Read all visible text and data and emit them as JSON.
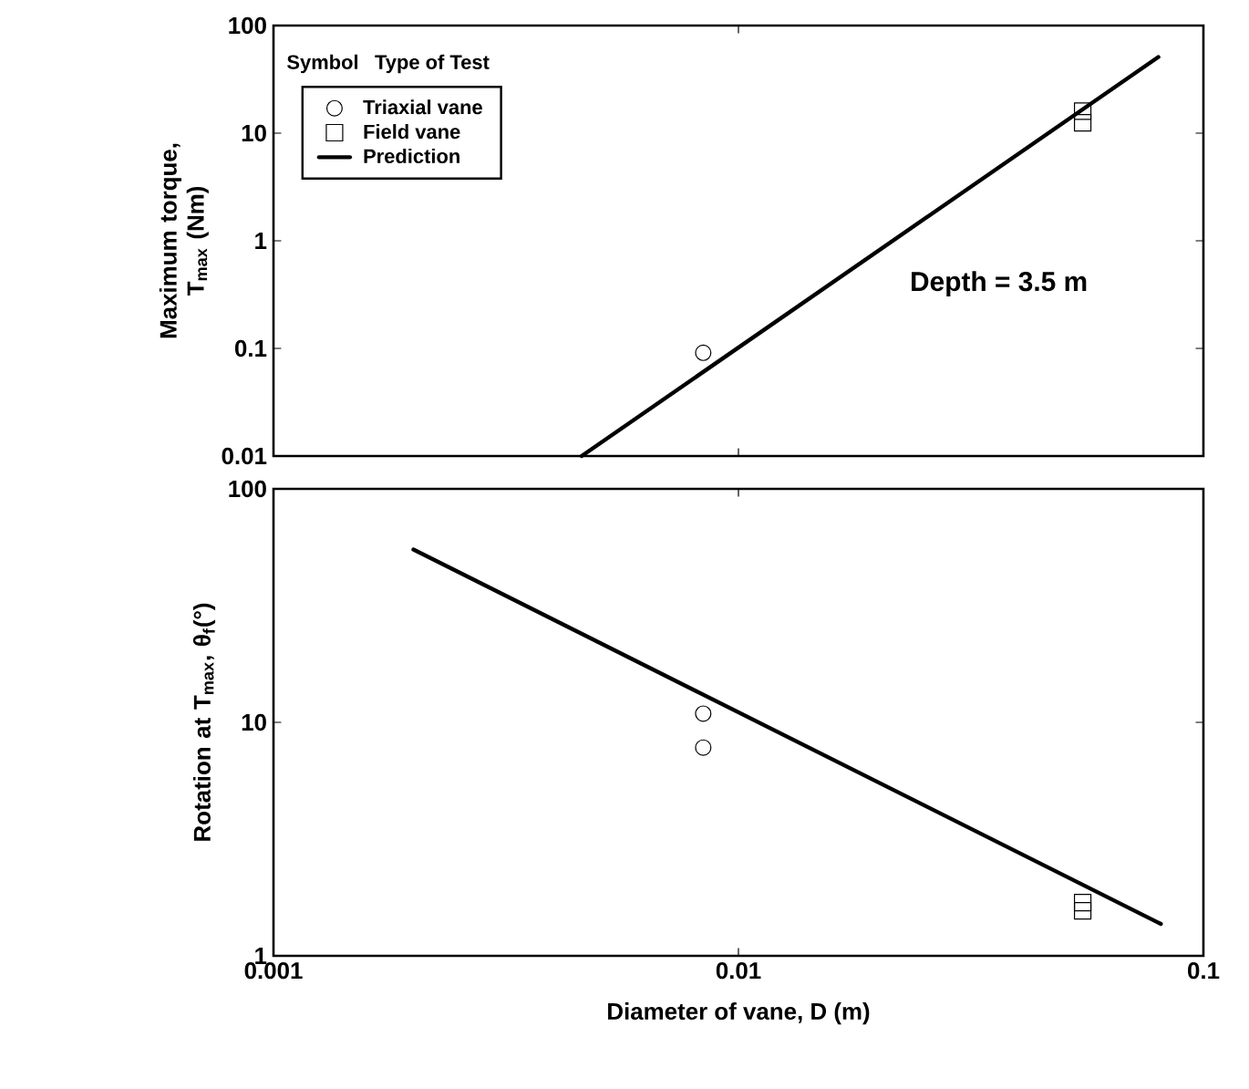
{
  "chart_data": [
    {
      "type": "scatter",
      "ylabel": "Maximum torque, T$_{max}$ (Nm)",
      "log": "xy",
      "xlim": [
        0.001,
        0.1
      ],
      "xticks": [
        0.001,
        0.01,
        0.1
      ],
      "ylim": [
        0.01,
        100
      ],
      "yticks": [
        0.01,
        0.1,
        1,
        10,
        100
      ],
      "tick_labels": "y",
      "legend": "top left",
      "legend_title": "Symbol",
      "annotations": [
        "Type of Test",
        "Depth =  3.5 m"
      ],
      "series": [
        {
          "name": "Triaxial vane",
          "marker": "circle",
          "color": "#000000",
          "x": [
            0.0084
          ],
          "values": [
            0.091
          ]
        },
        {
          "name": "Field vane",
          "marker": "square",
          "color": "#000000",
          "x": [
            0.055,
            0.055
          ],
          "values": [
            16,
            12.5
          ]
        },
        {
          "name": "Prediction",
          "type": "line",
          "color": "#000000",
          "x": [
            0.0046,
            0.08
          ],
          "values": [
            0.01,
            51
          ]
        }
      ]
    },
    {
      "type": "scatter",
      "ylabel": "Rotation at T$_{max}$, θ$_{f}$(°)",
      "xlabel": "Diameter of vane, D (m)",
      "log": "xy",
      "xlim": [
        0.001,
        0.1
      ],
      "xticks": [
        0.001,
        0.01,
        0.1
      ],
      "ylim": [
        1,
        100
      ],
      "yticks": [
        1,
        10,
        100
      ],
      "series": [
        {
          "marker": "circle",
          "color": "#000000",
          "x": [
            0.0084,
            0.0084
          ],
          "values": [
            10.9,
            7.8
          ]
        },
        {
          "marker": "square",
          "color": "#000000",
          "x": [
            0.055,
            0.055
          ],
          "values": [
            1.69,
            1.56
          ]
        },
        {
          "type": "line",
          "color": "#000000",
          "x": [
            0.002,
            0.081
          ],
          "values": [
            55,
            1.37
          ]
        }
      ]
    }
  ]
}
